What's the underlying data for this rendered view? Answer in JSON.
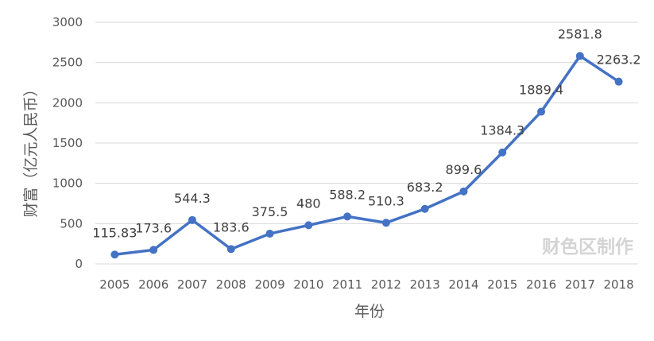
{
  "chart_data": {
    "type": "line",
    "title": "",
    "xlabel": "年份",
    "ylabel": "财富（亿元人民币）",
    "categories": [
      "2005",
      "2006",
      "2007",
      "2008",
      "2009",
      "2010",
      "2011",
      "2012",
      "2013",
      "2014",
      "2015",
      "2016",
      "2017",
      "2018"
    ],
    "series": [
      {
        "values": [
          115.83,
          173.6,
          544.3,
          183.6,
          375.5,
          480,
          588.2,
          510.3,
          683.2,
          899.6,
          1384.3,
          1889.4,
          2581.8,
          2263.2
        ],
        "labels": [
          "115.83",
          "173.6",
          "544.3",
          "183.6",
          "375.5",
          "480",
          "588.2",
          "510.3",
          "683.2",
          "899.6",
          "1384.3",
          "1889.4",
          "2581.8",
          "2263.2"
        ]
      }
    ],
    "ylim": [
      0,
      3000
    ],
    "yticks": [
      "0",
      "500",
      "1000",
      "1500",
      "2000",
      "2500",
      "3000"
    ],
    "grid": true,
    "legend": "none",
    "line_color": "#4472C4",
    "grid_color": "#D9D9D9"
  },
  "watermark": "财色区制作"
}
